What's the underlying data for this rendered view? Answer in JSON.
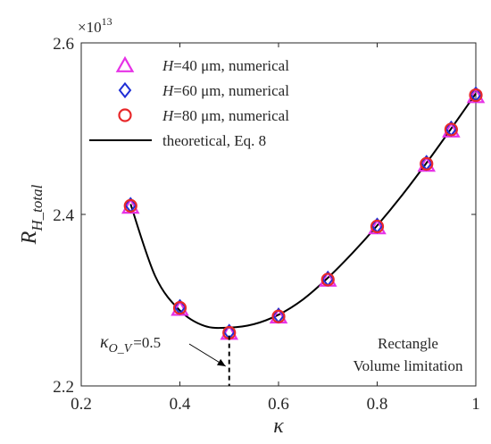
{
  "chart_data": {
    "type": "scatter",
    "title": "",
    "xlabel": "κ",
    "ylabel_main": "R",
    "ylabel_sub": "H_total",
    "xlim": [
      0.2,
      1.0
    ],
    "ylim": [
      2.2,
      2.6
    ],
    "scale_exponent_label": "×10",
    "scale_exponent_power": "13",
    "x_ticks": [
      {
        "value": 0.2,
        "label": "0.2"
      },
      {
        "value": 0.4,
        "label": "0.4"
      },
      {
        "value": 0.6,
        "label": "0.6"
      },
      {
        "value": 0.8,
        "label": "0.8"
      },
      {
        "value": 1.0,
        "label": "1"
      }
    ],
    "y_ticks": [
      {
        "value": 2.2,
        "label": "2.2"
      },
      {
        "value": 2.4,
        "label": "2.4"
      },
      {
        "value": 2.6,
        "label": "2.6"
      }
    ],
    "grid": false,
    "legend_position": "top-left",
    "series": [
      {
        "name_prefix": "H",
        "name": "=40 μm, numerical",
        "marker": "triangle",
        "color": "#e632e6",
        "x": [
          0.3,
          0.4,
          0.5,
          0.6,
          0.7,
          0.8,
          0.9,
          0.95,
          1.0
        ],
        "y": [
          2.409,
          2.29,
          2.262,
          2.281,
          2.324,
          2.385,
          2.458,
          2.498,
          2.538
        ]
      },
      {
        "name_prefix": "H",
        "name": "=60 μm, numerical",
        "marker": "diamond",
        "color": "#1f2fd6",
        "x": [
          0.3,
          0.4,
          0.5,
          0.6,
          0.7,
          0.8,
          0.9,
          0.95,
          1.0
        ],
        "y": [
          2.411,
          2.292,
          2.263,
          2.282,
          2.325,
          2.387,
          2.46,
          2.5,
          2.54
        ]
      },
      {
        "name_prefix": "H",
        "name": "=80 μm, numerical",
        "marker": "circle",
        "color": "#e8282a",
        "x": [
          0.3,
          0.4,
          0.5,
          0.6,
          0.7,
          0.8,
          0.9,
          0.95,
          1.0
        ],
        "y": [
          2.41,
          2.291,
          2.262,
          2.281,
          2.324,
          2.386,
          2.459,
          2.499,
          2.539
        ]
      },
      {
        "name_prefix": "",
        "name": "theoretical, Eq. 8",
        "marker": "line",
        "color": "#000000",
        "x": [
          0.3,
          0.35,
          0.4,
          0.45,
          0.5,
          0.55,
          0.6,
          0.65,
          0.7,
          0.75,
          0.8,
          0.85,
          0.9,
          0.95,
          1.0
        ],
        "y": [
          2.412,
          2.328,
          2.288,
          2.27,
          2.268,
          2.272,
          2.283,
          2.301,
          2.326,
          2.355,
          2.387,
          2.422,
          2.46,
          2.5,
          2.541
        ]
      }
    ],
    "annotations": {
      "optimum_symbol": "κ",
      "optimum_subscript": "O_V",
      "optimum_value": "=0.5",
      "optimum_x": 0.5,
      "optimum_y": 2.265,
      "note_line1": "Rectangle",
      "note_line2": "Volume limitation"
    }
  }
}
